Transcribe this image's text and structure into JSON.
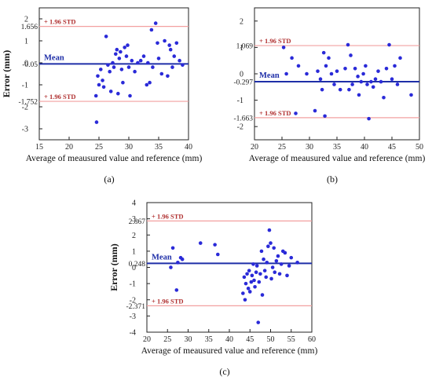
{
  "figure": {
    "panels": [
      "(a)",
      "(b)",
      "(c)"
    ]
  },
  "colors": {
    "points": "#2a2ad8",
    "mean_line": "#1f2fa8",
    "std_line": "#f2a0a0",
    "std_text": "#b03030",
    "axis": "#222222"
  },
  "chart_data": [
    {
      "type": "scatter",
      "panel": "(a)",
      "xlabel": "Average of meausured value and reference (mm)",
      "ylabel": "Error (mm)",
      "xlim": [
        15,
        40
      ],
      "ylim": [
        -3.5,
        2.5
      ],
      "xticks": [
        15,
        20,
        25,
        30,
        35,
        40
      ],
      "yticks": [
        -3,
        -2,
        -1,
        0,
        1,
        2
      ],
      "mean": {
        "value": -0.05,
        "label": "Mean",
        "value_label": "-0.05"
      },
      "upper_std": {
        "value": 1.656,
        "label": "+ 1.96 STD",
        "value_label": "1.656"
      },
      "lower_std": {
        "value": -1.752,
        "label": "+ 1.96 STD",
        "value_label": "-1.752"
      },
      "points": [
        [
          24.5,
          -1.5
        ],
        [
          24.6,
          -2.7
        ],
        [
          24.8,
          -0.6
        ],
        [
          25.0,
          -1.0
        ],
        [
          25.3,
          -0.3
        ],
        [
          25.6,
          -0.8
        ],
        [
          25.8,
          -1.1
        ],
        [
          26.2,
          1.2
        ],
        [
          26.5,
          -0.1
        ],
        [
          26.8,
          -0.4
        ],
        [
          27.0,
          -1.3
        ],
        [
          27.3,
          0.0
        ],
        [
          27.5,
          -0.2
        ],
        [
          27.8,
          0.4
        ],
        [
          28.0,
          0.6
        ],
        [
          28.2,
          -1.4
        ],
        [
          28.4,
          0.2
        ],
        [
          28.6,
          0.5
        ],
        [
          28.8,
          -0.3
        ],
        [
          29.0,
          -0.9
        ],
        [
          29.3,
          0.7
        ],
        [
          29.6,
          0.3
        ],
        [
          29.8,
          0.8
        ],
        [
          30.0,
          -0.2
        ],
        [
          30.2,
          -1.5
        ],
        [
          30.5,
          0.1
        ],
        [
          31.0,
          -0.4
        ],
        [
          31.5,
          0.0
        ],
        [
          32.0,
          0.1
        ],
        [
          32.5,
          0.3
        ],
        [
          33.0,
          -1.0
        ],
        [
          33.2,
          0.0
        ],
        [
          33.5,
          -0.9
        ],
        [
          33.8,
          1.5
        ],
        [
          34.0,
          -0.2
        ],
        [
          34.5,
          1.8
        ],
        [
          34.8,
          0.9
        ],
        [
          35.0,
          0.2
        ],
        [
          35.5,
          -0.5
        ],
        [
          36.0,
          1.0
        ],
        [
          36.5,
          -0.6
        ],
        [
          36.8,
          0.8
        ],
        [
          37.0,
          0.6
        ],
        [
          37.3,
          -0.2
        ],
        [
          37.6,
          0.3
        ],
        [
          38.0,
          0.9
        ],
        [
          38.5,
          0.1
        ],
        [
          39.0,
          -0.1
        ]
      ]
    },
    {
      "type": "scatter",
      "panel": "(b)",
      "xlabel": "Average of meausured value and reference (mm)",
      "ylabel": "",
      "xlim": [
        20,
        50
      ],
      "ylim": [
        -2.5,
        2.5
      ],
      "xticks": [
        20,
        25,
        30,
        35,
        40,
        45,
        50
      ],
      "yticks": [
        -2,
        -1,
        0,
        1,
        2
      ],
      "mean": {
        "value": -0.297,
        "label": "Mean",
        "value_label": "-0.297"
      },
      "upper_std": {
        "value": 1.069,
        "label": "+ 1.96 STD",
        "value_label": "1.069"
      },
      "lower_std": {
        "value": -1.663,
        "label": "+ 1.96 STD",
        "value_label": "-1.663"
      },
      "points": [
        [
          25.3,
          1.0
        ],
        [
          25.8,
          0.0
        ],
        [
          26.8,
          0.6
        ],
        [
          27.5,
          -1.5
        ],
        [
          28.0,
          0.3
        ],
        [
          29.5,
          0.0
        ],
        [
          31.0,
          -1.4
        ],
        [
          31.5,
          0.1
        ],
        [
          32.0,
          -0.2
        ],
        [
          32.3,
          -0.6
        ],
        [
          32.6,
          0.8
        ],
        [
          32.8,
          -1.6
        ],
        [
          33.0,
          0.3
        ],
        [
          33.5,
          0.6
        ],
        [
          34.0,
          0.0
        ],
        [
          34.5,
          -0.4
        ],
        [
          35.0,
          0.1
        ],
        [
          35.6,
          -0.6
        ],
        [
          36.5,
          0.2
        ],
        [
          37.0,
          1.1
        ],
        [
          37.2,
          -0.6
        ],
        [
          37.5,
          0.7
        ],
        [
          37.8,
          -0.4
        ],
        [
          38.3,
          0.2
        ],
        [
          38.8,
          -0.1
        ],
        [
          39.0,
          -0.8
        ],
        [
          39.4,
          -0.3
        ],
        [
          39.8,
          0.0
        ],
        [
          40.2,
          0.3
        ],
        [
          40.5,
          -0.4
        ],
        [
          40.8,
          -1.7
        ],
        [
          41.2,
          -0.3
        ],
        [
          41.6,
          -0.5
        ],
        [
          42.0,
          -0.2
        ],
        [
          42.5,
          0.1
        ],
        [
          43.0,
          -0.3
        ],
        [
          43.5,
          -0.9
        ],
        [
          44.0,
          0.2
        ],
        [
          44.5,
          1.1
        ],
        [
          45.0,
          -0.2
        ],
        [
          45.5,
          0.3
        ],
        [
          46.0,
          -0.4
        ],
        [
          46.5,
          0.6
        ],
        [
          48.5,
          -0.8
        ]
      ]
    },
    {
      "type": "scatter",
      "panel": "(c)",
      "xlabel": "Average of meausured value and reference (mm)",
      "ylabel": "Error (mm)",
      "xlim": [
        20,
        60
      ],
      "ylim": [
        -4,
        4
      ],
      "xticks": [
        20,
        25,
        30,
        35,
        40,
        45,
        50,
        55,
        60
      ],
      "yticks": [
        -4,
        -3,
        -2,
        -1,
        0,
        1,
        2,
        3,
        4
      ],
      "mean": {
        "value": 0.248,
        "label": "Mean",
        "value_label": "0.248"
      },
      "upper_std": {
        "value": 2.867,
        "label": "+ 1.96 STD",
        "value_label": "2.867"
      },
      "lower_std": {
        "value": -2.371,
        "label": "+ 1.96 STD",
        "value_label": "-2.371"
      },
      "points": [
        [
          25.8,
          0.0
        ],
        [
          26.3,
          1.2
        ],
        [
          27.2,
          -1.4
        ],
        [
          27.5,
          0.3
        ],
        [
          28.2,
          0.6
        ],
        [
          28.6,
          0.5
        ],
        [
          33.0,
          1.5
        ],
        [
          36.5,
          1.4
        ],
        [
          37.2,
          0.8
        ],
        [
          43.3,
          -1.6
        ],
        [
          43.6,
          -0.6
        ],
        [
          43.8,
          -2.0
        ],
        [
          44.0,
          -1.0
        ],
        [
          44.3,
          -0.4
        ],
        [
          44.6,
          -1.3
        ],
        [
          44.8,
          -0.2
        ],
        [
          45.0,
          -1.5
        ],
        [
          45.3,
          -0.9
        ],
        [
          45.5,
          -0.5
        ],
        [
          45.8,
          0.2
        ],
        [
          46.0,
          -0.8
        ],
        [
          46.2,
          -1.2
        ],
        [
          46.5,
          -0.3
        ],
        [
          46.7,
          0.1
        ],
        [
          47.0,
          -3.4
        ],
        [
          47.2,
          -0.9
        ],
        [
          47.5,
          -0.4
        ],
        [
          47.8,
          1.0
        ],
        [
          48.0,
          -1.7
        ],
        [
          48.3,
          0.5
        ],
        [
          48.6,
          -0.2
        ],
        [
          48.9,
          -0.6
        ],
        [
          49.1,
          0.3
        ],
        [
          49.4,
          1.3
        ],
        [
          49.7,
          2.3
        ],
        [
          50.0,
          1.5
        ],
        [
          50.2,
          -0.7
        ],
        [
          50.5,
          0.0
        ],
        [
          50.8,
          1.2
        ],
        [
          51.0,
          -0.3
        ],
        [
          51.4,
          0.4
        ],
        [
          51.8,
          0.7
        ],
        [
          52.2,
          -0.4
        ],
        [
          52.6,
          0.2
        ],
        [
          53.0,
          1.0
        ],
        [
          53.5,
          0.9
        ],
        [
          54.0,
          -0.5
        ],
        [
          54.5,
          0.1
        ],
        [
          55.0,
          0.6
        ],
        [
          56.5,
          0.3
        ]
      ]
    }
  ]
}
